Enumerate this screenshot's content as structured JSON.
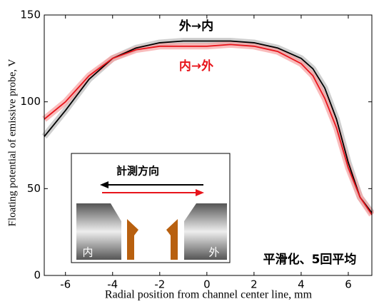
{
  "chart_data": {
    "type": "line",
    "x_label": "Radial position from channel center line, mm",
    "y_label": "Floating potential of emissive probe, V",
    "x": [
      -6.9,
      -6,
      -5,
      -4,
      -3,
      -2,
      -1,
      0,
      1,
      2,
      3,
      4,
      4.5,
      5,
      5.5,
      6,
      6.5,
      7
    ],
    "series": [
      {
        "name": "外→内",
        "color": "#000000",
        "values": [
          80,
          95,
          113,
          125,
          131,
          134,
          135,
          135,
          135,
          134,
          131,
          125,
          119,
          108,
          90,
          65,
          45,
          36
        ]
      },
      {
        "name": "内→外",
        "color": "#e8141b",
        "values": [
          90,
          100,
          115,
          125,
          130,
          132,
          132,
          132,
          133,
          132,
          129,
          122,
          115,
          102,
          85,
          62,
          45,
          35
        ]
      }
    ],
    "xlim": [
      -6.9,
      7
    ],
    "xticks": [
      -6,
      -4,
      -2,
      0,
      2,
      4,
      6
    ],
    "ylim": [
      0,
      150
    ],
    "yticks": [
      0,
      50,
      100,
      150
    ],
    "annotations": [
      "平滑化、5回平均"
    ],
    "inset": {
      "arrow_label": "計測方向",
      "left_label": "内",
      "right_label": "外"
    }
  }
}
